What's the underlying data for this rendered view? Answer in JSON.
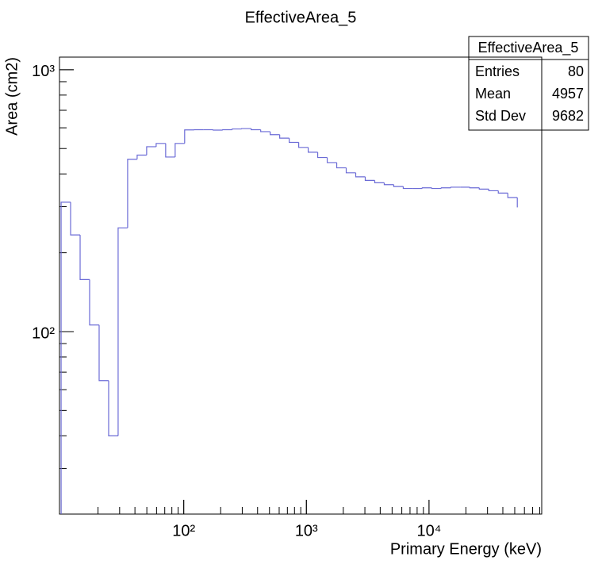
{
  "chart_data": {
    "type": "histogram",
    "title": "EffectiveArea_5",
    "x_label": "Primary Energy (keV)",
    "y_label": "Area (cm2)",
    "xscale": "log",
    "yscale": "log",
    "bins": [
      10,
      11.95,
      14.29,
      17.08,
      20.42,
      24.41,
      29.17,
      34.87,
      41.69,
      49.83,
      59.57,
      71.2,
      85.11,
      101.7,
      121.6,
      145.4,
      173.8,
      207.7,
      248.3,
      296.8,
      354.8,
      424.1,
      507,
      606,
      724.4,
      865.9,
      1035,
      1237,
      1479,
      1768,
      2113,
      2526,
      3020,
      3610,
      4315,
      5158,
      6166,
      7370,
      8810,
      10530,
      12590,
      15050,
      17990,
      21500,
      25700,
      30720,
      36730,
      43900,
      52480
    ],
    "values": [
      312,
      234,
      158,
      106,
      65,
      40,
      249,
      455,
      472,
      508,
      523,
      464,
      523,
      589,
      590,
      590,
      588,
      590,
      594,
      596,
      590,
      580,
      565,
      548,
      528,
      505,
      484,
      462,
      442,
      422,
      404,
      390,
      378,
      370,
      364,
      358,
      352,
      352,
      354,
      352,
      354,
      356,
      356,
      354,
      350,
      345,
      338,
      325,
      298
    ],
    "color": "#6b6bd6",
    "xlim": [
      9.7,
      83000
    ],
    "ylim": [
      20.1,
      1117
    ],
    "xticks": [
      {
        "value": 100,
        "label": "10²"
      },
      {
        "value": 1000,
        "label": "10³"
      },
      {
        "value": 10000,
        "label": "10⁴"
      }
    ],
    "yticks": [
      {
        "value": 100,
        "label": "10²"
      },
      {
        "value": 1000,
        "label": "10³"
      }
    ],
    "stats": {
      "title": "EffectiveArea_5",
      "rows": [
        {
          "label": "Entries",
          "value": 80
        },
        {
          "label": "Mean",
          "value": 4957
        },
        {
          "label": "Std Dev",
          "value": 9682
        }
      ]
    }
  }
}
